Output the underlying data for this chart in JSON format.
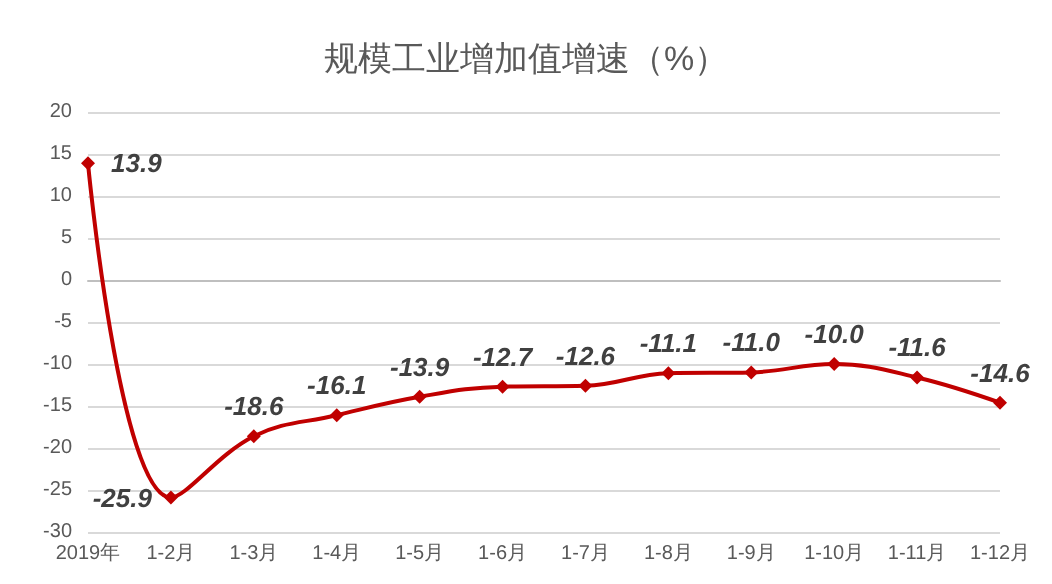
{
  "chart_data": {
    "type": "line",
    "title": "规模工业增加值增速（%）",
    "categories": [
      "2019年",
      "1-2月",
      "1-3月",
      "1-4月",
      "1-5月",
      "1-6月",
      "1-7月",
      "1-8月",
      "1-9月",
      "1-10月",
      "1-11月",
      "1-12月"
    ],
    "series": [
      {
        "color": "#c00000",
        "values": [
          13.9,
          -25.9,
          -18.6,
          -16.1,
          -13.9,
          -12.7,
          -12.6,
          -11.1,
          -11.0,
          -10.0,
          -11.6,
          -14.6
        ],
        "value_labels": [
          "13.9",
          "-25.9",
          "-18.6",
          "-16.1",
          "-13.9",
          "-12.7",
          "-12.6",
          "-11.1",
          "-11.0",
          "-10.0",
          "-11.6",
          "-14.6"
        ]
      }
    ],
    "ylim": [
      -30,
      20
    ],
    "yticks": [
      -30,
      -25,
      -20,
      -15,
      -10,
      -5,
      0,
      5,
      10,
      15,
      20
    ],
    "grid": "y",
    "marker": "diamond",
    "line_style": "solid"
  }
}
